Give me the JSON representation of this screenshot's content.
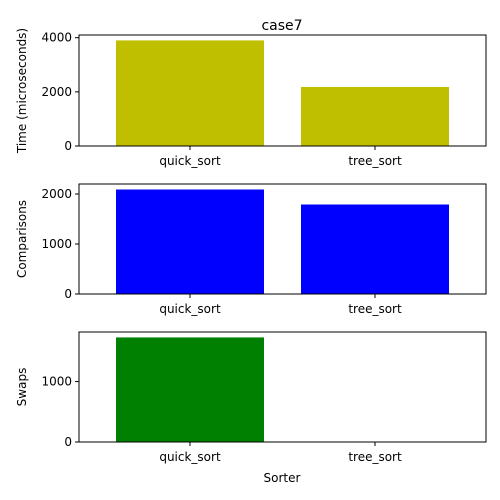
{
  "title": "case7",
  "xlabel": "Sorter",
  "chart_data": [
    {
      "type": "bar",
      "title": "case7",
      "categories": [
        "quick_sort",
        "tree_sort"
      ],
      "values": [
        3900,
        2180
      ],
      "ylabel": "Time (microseconds)",
      "ylim": [
        0,
        4100
      ],
      "yticks": [
        0,
        2000,
        4000
      ],
      "ytick_labels": [
        "0",
        "2000",
        "4000"
      ],
      "color": "#bfbf00",
      "grid": false
    },
    {
      "type": "bar",
      "categories": [
        "quick_sort",
        "tree_sort"
      ],
      "values": [
        2090,
        1790
      ],
      "ylabel": "Comparisons",
      "ylim": [
        0,
        2200
      ],
      "yticks": [
        0,
        1000,
        2000
      ],
      "ytick_labels": [
        "0",
        "1000",
        "2000"
      ],
      "color": "#0000ff",
      "grid": false
    },
    {
      "type": "bar",
      "categories": [
        "quick_sort",
        "tree_sort"
      ],
      "values": [
        1730,
        0
      ],
      "ylabel": "Swaps",
      "xlabel": "Sorter",
      "ylim": [
        0,
        1820
      ],
      "yticks": [
        0,
        1000
      ],
      "ytick_labels": [
        "0",
        "1000"
      ],
      "color": "#008000",
      "grid": false
    }
  ]
}
